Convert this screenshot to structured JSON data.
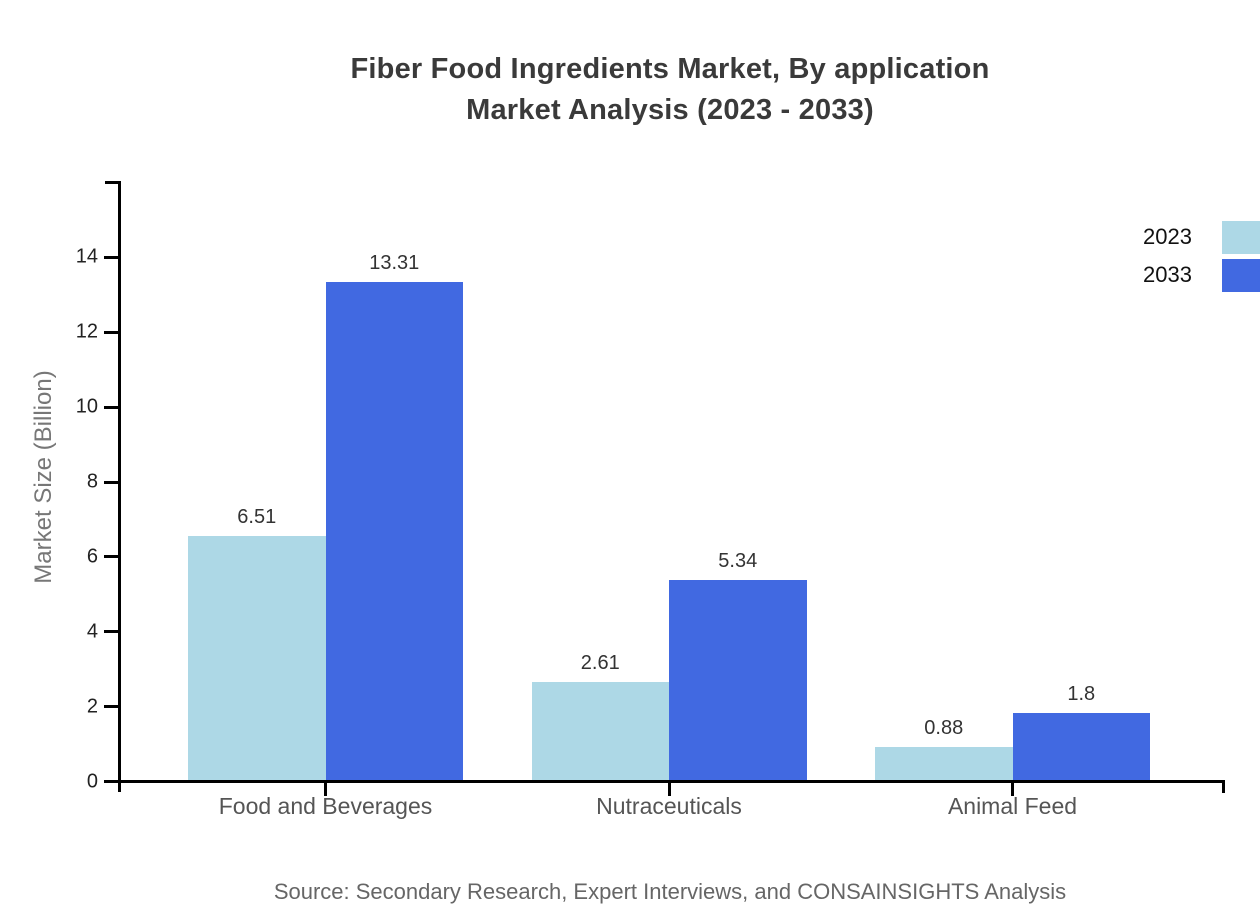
{
  "chart_data": {
    "type": "bar",
    "title_line1": "Fiber Food Ingredients Market, By application",
    "title_line2": "Market Analysis (2023 - 2033)",
    "ylabel": "Market Size (Billion)",
    "xlabel": "",
    "categories": [
      "Food and Beverages",
      "Nutraceuticals",
      "Animal Feed"
    ],
    "series": [
      {
        "name": "2023",
        "color": "#ADD8E6",
        "values": [
          6.51,
          2.61,
          0.88
        ],
        "value_labels": [
          "6.51",
          "2.61",
          "0.88"
        ]
      },
      {
        "name": "2033",
        "color": "#4169E1",
        "values": [
          13.31,
          5.34,
          1.8
        ],
        "value_labels": [
          "13.31",
          "5.34",
          "1.8"
        ]
      }
    ],
    "y_ticks": [
      0,
      2,
      4,
      6,
      8,
      10,
      12,
      14
    ],
    "ylim": [
      0,
      16
    ],
    "grid": false,
    "legend_position": "top-right",
    "source": "Source: Secondary Research, Expert Interviews, and CONSAINSIGHTS Analysis"
  },
  "colors": {
    "background": "#ffffff",
    "title": "#3a3a3a",
    "axis": "#000000",
    "tick_label": "#222222",
    "value_label": "#333333",
    "category_label": "#555555",
    "ylabel": "#777777",
    "legend_text": "#111111",
    "source": "#666666"
  }
}
